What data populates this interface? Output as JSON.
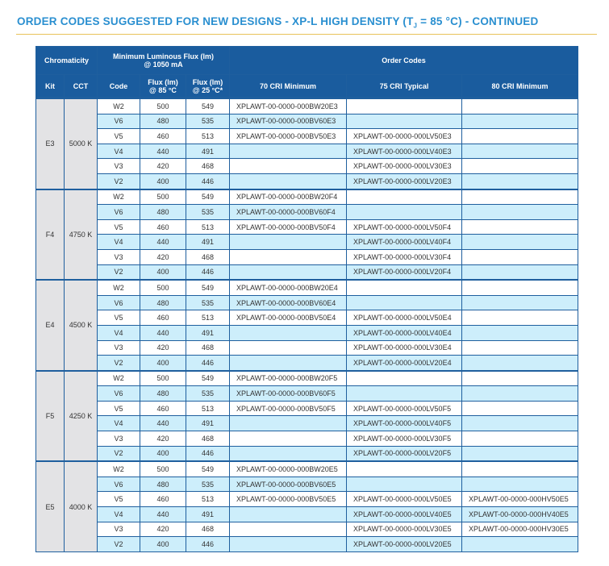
{
  "header": {
    "title_prefix": "ORDER CODES SUGGESTED FOR NEW DESIGNS - XP-L HIGH DENSITY (T",
    "title_subscript": "J",
    "title_suffix": " = 85 °C) - CONTINUED"
  },
  "table": {
    "group_headers": {
      "chromaticity": "Chromaticity",
      "flux_line1": "Minimum Luminous Flux (lm)",
      "flux_line2": "@ 1050 mA",
      "order_codes": "Order Codes"
    },
    "column_headers": {
      "kit": "Kit",
      "cct": "CCT",
      "code": "Code",
      "flux85_line1": "Flux (lm)",
      "flux85_line2": "@ 85 °C",
      "flux25_line1": "Flux (lm)",
      "flux25_line2": "@ 25 °C*",
      "cri70": "70 CRI Minimum",
      "cri75": "75 CRI Typical",
      "cri80": "80 CRI Minimum"
    },
    "groups": [
      {
        "kit": "E3",
        "cct": "5000 K",
        "rows": [
          [
            "W2",
            500,
            549,
            "XPLAWT-00-0000-000BW20E3",
            null,
            null
          ],
          [
            "V6",
            480,
            535,
            "XPLAWT-00-0000-000BV60E3",
            null,
            null
          ],
          [
            "V5",
            460,
            513,
            "XPLAWT-00-0000-000BV50E3",
            "XPLAWT-00-0000-000LV50E3",
            null
          ],
          [
            "V4",
            440,
            491,
            null,
            "XPLAWT-00-0000-000LV40E3",
            null
          ],
          [
            "V3",
            420,
            468,
            null,
            "XPLAWT-00-0000-000LV30E3",
            null
          ],
          [
            "V2",
            400,
            446,
            null,
            "XPLAWT-00-0000-000LV20E3",
            null
          ]
        ]
      },
      {
        "kit": "F4",
        "cct": "4750 K",
        "rows": [
          [
            "W2",
            500,
            549,
            "XPLAWT-00-0000-000BW20F4",
            null,
            null
          ],
          [
            "V6",
            480,
            535,
            "XPLAWT-00-0000-000BV60F4",
            null,
            null
          ],
          [
            "V5",
            460,
            513,
            "XPLAWT-00-0000-000BV50F4",
            "XPLAWT-00-0000-000LV50F4",
            null
          ],
          [
            "V4",
            440,
            491,
            null,
            "XPLAWT-00-0000-000LV40F4",
            null
          ],
          [
            "V3",
            420,
            468,
            null,
            "XPLAWT-00-0000-000LV30F4",
            null
          ],
          [
            "V2",
            400,
            446,
            null,
            "XPLAWT-00-0000-000LV20F4",
            null
          ]
        ]
      },
      {
        "kit": "E4",
        "cct": "4500 K",
        "rows": [
          [
            "W2",
            500,
            549,
            "XPLAWT-00-0000-000BW20E4",
            null,
            null
          ],
          [
            "V6",
            480,
            535,
            "XPLAWT-00-0000-000BV60E4",
            null,
            null
          ],
          [
            "V5",
            460,
            513,
            "XPLAWT-00-0000-000BV50E4",
            "XPLAWT-00-0000-000LV50E4",
            null
          ],
          [
            "V4",
            440,
            491,
            null,
            "XPLAWT-00-0000-000LV40E4",
            null
          ],
          [
            "V3",
            420,
            468,
            null,
            "XPLAWT-00-0000-000LV30E4",
            null
          ],
          [
            "V2",
            400,
            446,
            null,
            "XPLAWT-00-0000-000LV20E4",
            null
          ]
        ]
      },
      {
        "kit": "F5",
        "cct": "4250 K",
        "rows": [
          [
            "W2",
            500,
            549,
            "XPLAWT-00-0000-000BW20F5",
            null,
            null
          ],
          [
            "V6",
            480,
            535,
            "XPLAWT-00-0000-000BV60F5",
            null,
            null
          ],
          [
            "V5",
            460,
            513,
            "XPLAWT-00-0000-000BV50F5",
            "XPLAWT-00-0000-000LV50F5",
            null
          ],
          [
            "V4",
            440,
            491,
            null,
            "XPLAWT-00-0000-000LV40F5",
            null
          ],
          [
            "V3",
            420,
            468,
            null,
            "XPLAWT-00-0000-000LV30F5",
            null
          ],
          [
            "V2",
            400,
            446,
            null,
            "XPLAWT-00-0000-000LV20F5",
            null
          ]
        ]
      },
      {
        "kit": "E5",
        "cct": "4000 K",
        "rows": [
          [
            "W2",
            500,
            549,
            "XPLAWT-00-0000-000BW20E5",
            null,
            null
          ],
          [
            "V6",
            480,
            535,
            "XPLAWT-00-0000-000BV60E5",
            null,
            null
          ],
          [
            "V5",
            460,
            513,
            "XPLAWT-00-0000-000BV50E5",
            "XPLAWT-00-0000-000LV50E5",
            "XPLAWT-00-0000-000HV50E5"
          ],
          [
            "V4",
            440,
            491,
            null,
            "XPLAWT-00-0000-000LV40E5",
            "XPLAWT-00-0000-000HV40E5"
          ],
          [
            "V3",
            420,
            468,
            null,
            "XPLAWT-00-0000-000LV30E5",
            "XPLAWT-00-0000-000HV30E5"
          ],
          [
            "V2",
            400,
            446,
            null,
            "XPLAWT-00-0000-000LV20E5",
            null
          ]
        ]
      }
    ]
  }
}
